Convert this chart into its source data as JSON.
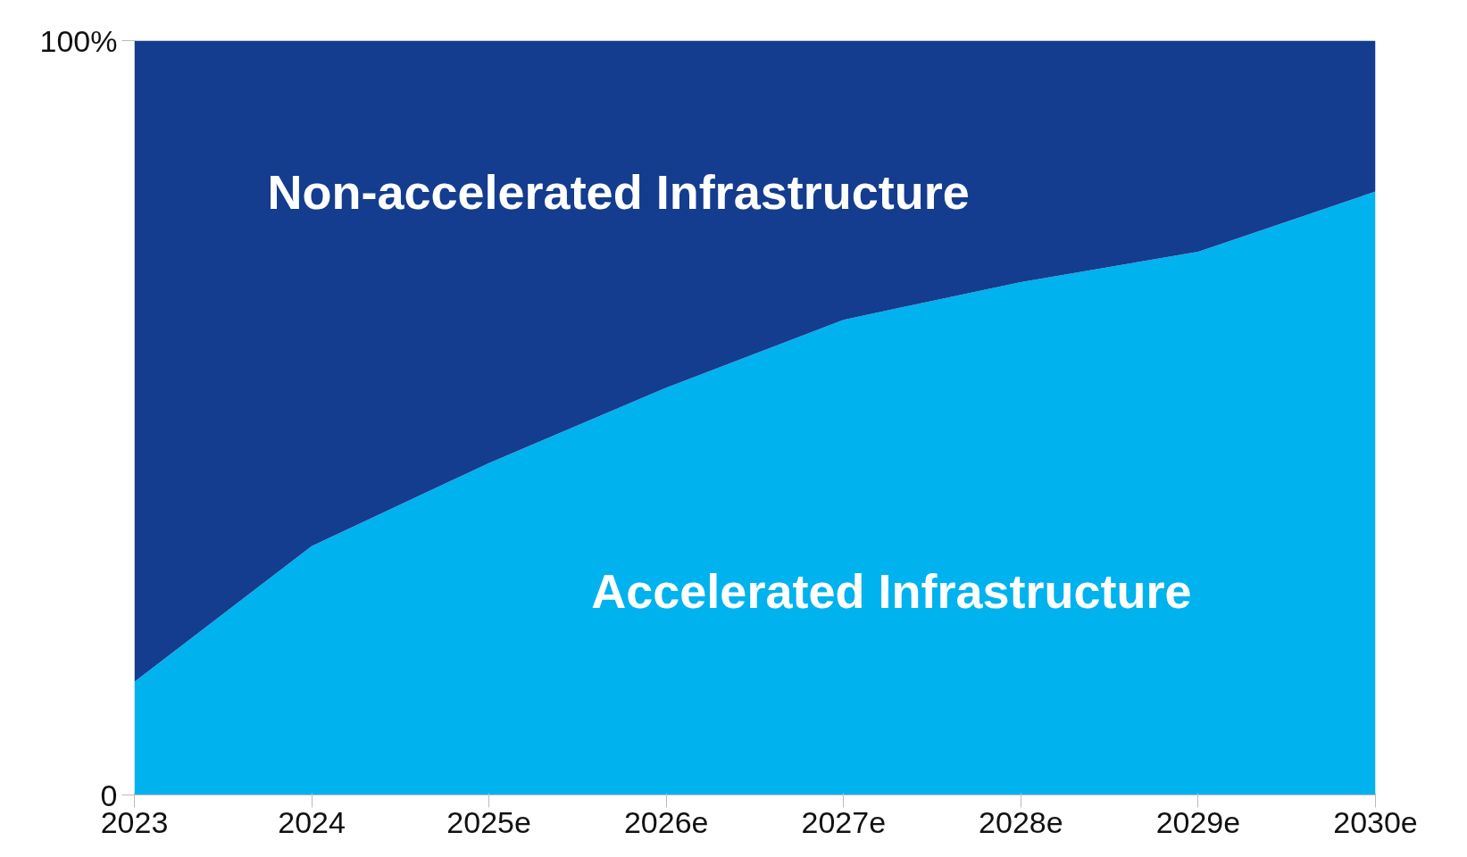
{
  "chart_data": {
    "type": "area",
    "stacked": true,
    "categories": [
      "2023",
      "2024",
      "2025e",
      "2026e",
      "2027e",
      "2028e",
      "2029e",
      "2030e"
    ],
    "series": [
      {
        "name": "Accelerated Infrastructure",
        "color": "#00b2ee",
        "values": [
          15,
          33,
          44,
          54,
          63,
          68,
          72,
          80
        ]
      },
      {
        "name": "Non-accelerated Infrastructure",
        "color": "#143c8f",
        "values": [
          85,
          67,
          56,
          46,
          37,
          32,
          28,
          20
        ]
      }
    ],
    "ylim": [
      0,
      100
    ],
    "yticks": [
      0,
      {
        "value": 100,
        "label": "100%"
      }
    ],
    "grid": false
  }
}
